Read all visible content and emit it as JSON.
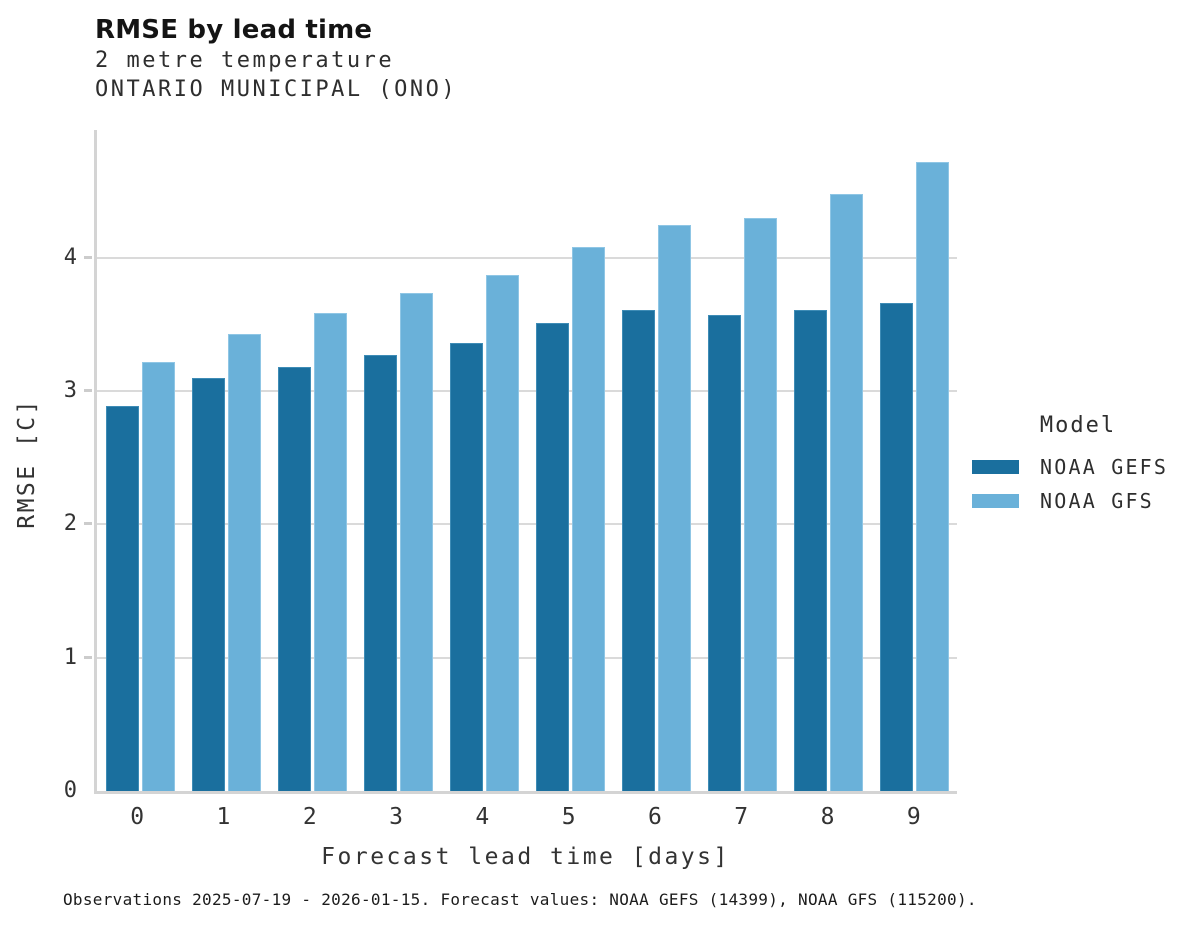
{
  "header": {
    "title": "RMSE by lead time"
  },
  "chart_data": {
    "type": "bar",
    "title": "RMSE by lead time",
    "subtitle": [
      "2 metre temperature",
      "ONTARIO MUNICIPAL (ONO)"
    ],
    "categories": [
      "0",
      "1",
      "2",
      "3",
      "4",
      "5",
      "6",
      "7",
      "8",
      "9"
    ],
    "series": [
      {
        "name": "NOAA GEFS",
        "color": "#1a6f9e",
        "edge_color": "#3e8cb6",
        "values": [
          2.89,
          3.1,
          3.18,
          3.27,
          3.36,
          3.51,
          3.61,
          3.57,
          3.61,
          3.66
        ]
      },
      {
        "name": "NOAA GFS",
        "color": "#6ab1d9",
        "edge_color": "#8fc6e5",
        "values": [
          3.22,
          3.43,
          3.59,
          3.74,
          3.87,
          4.08,
          4.25,
          4.3,
          4.48,
          4.72
        ]
      }
    ],
    "xlabel": "Forecast lead time [days]",
    "ylabel": "RMSE [C]",
    "ylim": [
      0,
      4.96
    ],
    "yticks": [
      0,
      1,
      2,
      3,
      4
    ],
    "grid": "horizontal-only",
    "axis_color": "#d4d4d4",
    "gridline_color": "#dadada",
    "legend_title": "Model",
    "legend_position": "right-middle"
  },
  "footer": {
    "text": "Observations 2025-07-19 - 2026-01-15. Forecast values: NOAA GEFS (14399), NOAA GFS (115200)."
  }
}
